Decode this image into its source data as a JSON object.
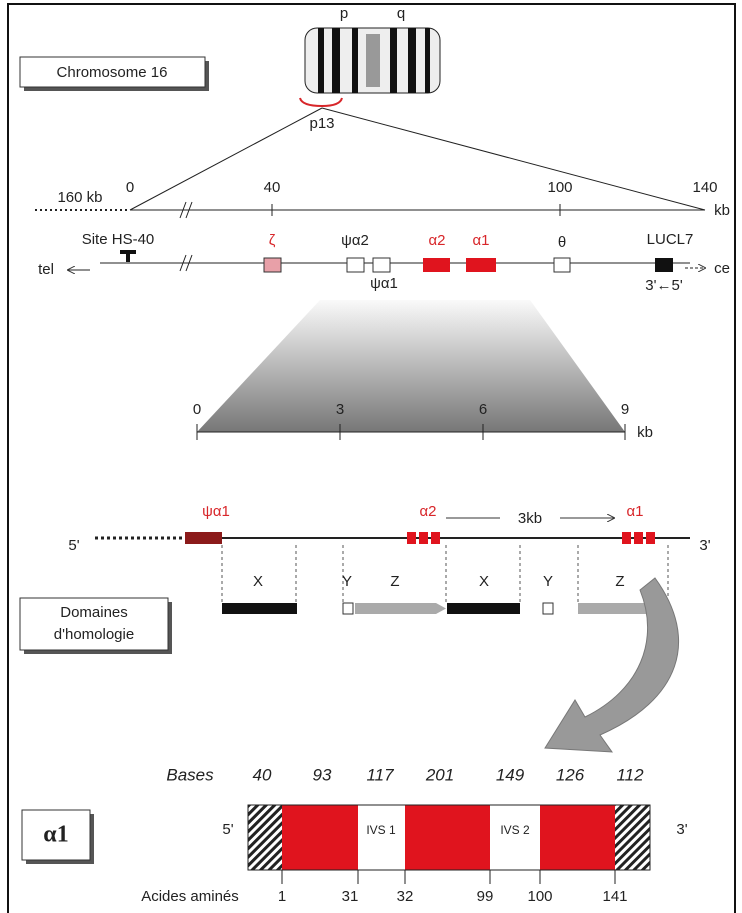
{
  "chromosome": {
    "label": "Chromosome 16",
    "arms": [
      "p",
      "q"
    ],
    "band": "p13"
  },
  "locus_scale": {
    "extension": "160 kb",
    "ticks": [
      "0",
      "40",
      "100",
      "140"
    ],
    "unit": "kb"
  },
  "locus_map": {
    "site": "Site HS-40",
    "telomere": "tel",
    "centromere": "ce",
    "genes": [
      "ζ",
      "ψα2",
      "ψα1",
      "α2",
      "α1",
      "θ",
      "LUCL7"
    ],
    "orientation": "3'←5'"
  },
  "detail_scale": {
    "ticks": [
      "0",
      "3",
      "6",
      "9"
    ],
    "unit": "kb"
  },
  "cluster": {
    "five_prime": "5'",
    "three_prime": "3'",
    "genes": [
      "ψα1",
      "α2",
      "α1"
    ],
    "spacing": "3kb",
    "homology_label": [
      "Domaines",
      "d'homologie"
    ],
    "domains": [
      "X",
      "Y",
      "Z",
      "X",
      "Y",
      "Z"
    ]
  },
  "gene_structure": {
    "gene": "α1",
    "bases_label": "Bases",
    "bases": [
      "40",
      "93",
      "117",
      "201",
      "149",
      "126",
      "112"
    ],
    "five_prime": "5'",
    "three_prime": "3'",
    "introns": [
      "IVS 1",
      "IVS 2"
    ],
    "aa_label": "Acides aminés",
    "aa": [
      "1",
      "31",
      "32",
      "99",
      "100",
      "141"
    ]
  }
}
